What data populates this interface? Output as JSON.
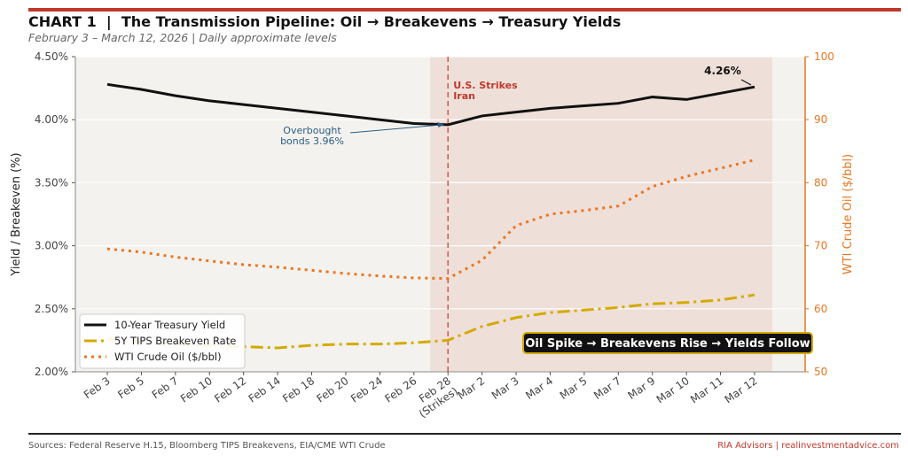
{
  "header": {
    "title": "CHART 1  |  The Transmission Pipeline: Oil → Breakevens → Treasury Yields",
    "subtitle": "February 3 – March 12, 2026  |  Daily approximate levels"
  },
  "footer": {
    "sources": "Sources: Federal Reserve H.15, Bloomberg TIPS Breakevens, EIA/CME WTI Crude",
    "brand": "RIA Advisors | realinvestmentadvice.com"
  },
  "colors": {
    "accent": "#c0392b",
    "yield": "#111111",
    "breakeven": "#d4aa00",
    "oil": "#e87722",
    "annotation": "#2a5d84"
  },
  "chart_data": {
    "type": "line",
    "categories": [
      "Feb 3",
      "Feb 5",
      "Feb 7",
      "Feb 10",
      "Feb 12",
      "Feb 14",
      "Feb 18",
      "Feb 20",
      "Feb 24",
      "Feb 26",
      "Feb 28\n(Strikes)",
      "Mar 2",
      "Mar 3",
      "Mar 4",
      "Mar 5",
      "Mar 7",
      "Mar 9",
      "Mar 10",
      "Mar 11",
      "Mar 12"
    ],
    "ylabel": "Yield / Breakeven (%)",
    "ylim": [
      2.0,
      4.5
    ],
    "yticks": [
      "2.00%",
      "2.50%",
      "3.00%",
      "3.50%",
      "4.00%",
      "4.50%"
    ],
    "y2label": "WTI Crude Oil ($/bbl)",
    "y2lim": [
      50,
      100
    ],
    "y2ticks": [
      "50",
      "60",
      "70",
      "80",
      "90",
      "100"
    ],
    "grid": true,
    "legend": "bottom-left",
    "series": [
      {
        "name": "10-Year Treasury Yield",
        "axis": "left",
        "style": "solid",
        "values": [
          4.28,
          4.24,
          4.19,
          4.15,
          4.12,
          4.09,
          4.06,
          4.03,
          4.0,
          3.97,
          3.96,
          4.03,
          4.06,
          4.09,
          4.11,
          4.13,
          4.18,
          4.16,
          4.21,
          4.26
        ]
      },
      {
        "name": "5Y TIPS Breakeven Rate",
        "axis": "left",
        "style": "dashdot",
        "values": [
          2.26,
          2.24,
          2.22,
          2.21,
          2.2,
          2.19,
          2.21,
          2.22,
          2.22,
          2.23,
          2.25,
          2.36,
          2.43,
          2.47,
          2.49,
          2.51,
          2.54,
          2.55,
          2.57,
          2.61
        ]
      },
      {
        "name": "WTI Crude Oil ($/bbl)",
        "axis": "right",
        "style": "dotted",
        "values": [
          69.5,
          69.0,
          68.2,
          67.6,
          67.0,
          66.6,
          66.1,
          65.6,
          65.2,
          64.9,
          64.8,
          67.7,
          73.2,
          75.0,
          75.6,
          76.3,
          79.4,
          81.0,
          82.3,
          83.6
        ]
      }
    ],
    "annotations": {
      "strike": "U.S. Strikes\nIran",
      "overbought": "Overbought\nbonds 3.96%",
      "last": "4.26%",
      "callout": "Oil Spike → Breakevens Rise → Yields Follow"
    }
  }
}
